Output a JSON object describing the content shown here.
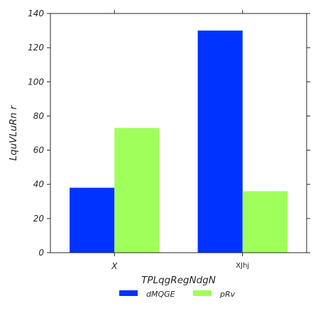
{
  "chart_data": {
    "type": "bar",
    "categories": [
      "X",
      "XJhj"
    ],
    "series": [
      {
        "name": "dMQGE",
        "values": [
          38,
          130
        ],
        "color": "#0033ff"
      },
      {
        "name": "pRv",
        "values": [
          73,
          36
        ],
        "color": "#a0ff5a"
      }
    ],
    "xlabel": "TPLqgRegNdgN",
    "ylabel": "LquVLuRn  r",
    "ylim": [
      0,
      140
    ],
    "yticks": [
      0,
      20,
      40,
      60,
      80,
      100,
      120,
      140
    ],
    "grid": false,
    "legend_position": "bottom"
  }
}
